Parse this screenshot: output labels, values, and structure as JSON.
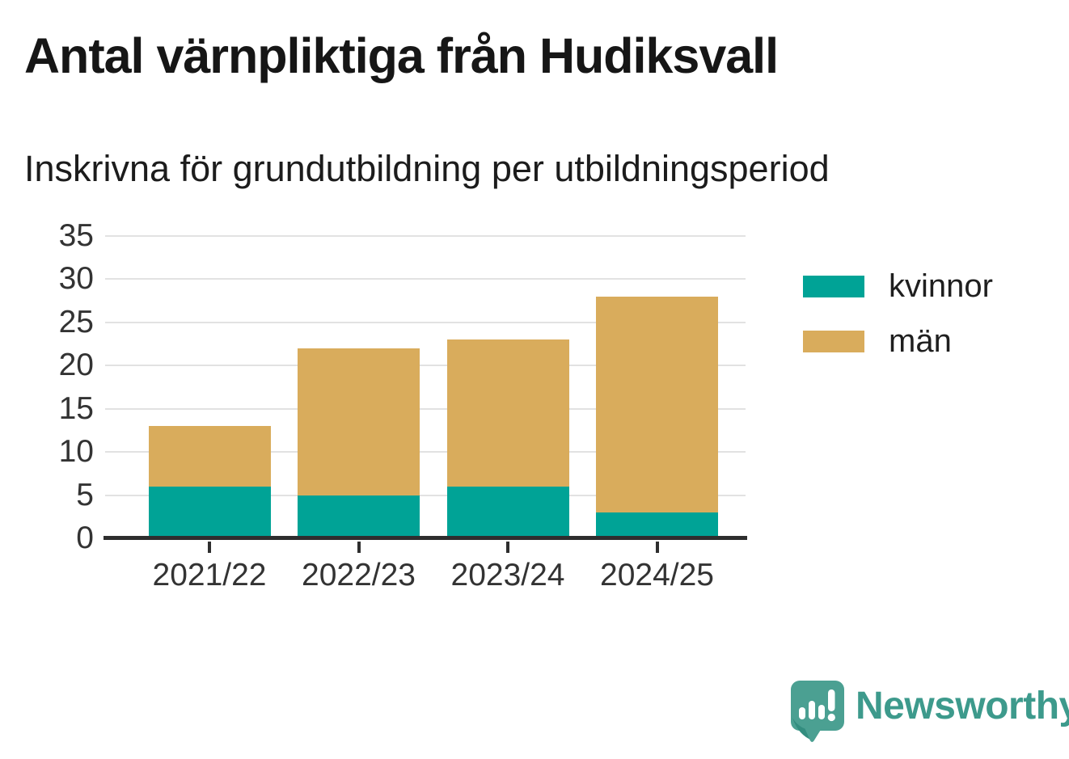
{
  "header": {
    "title": "Antal värnpliktiga från Hudiksvall",
    "subtitle": "Inskrivna för grundutbildning per utbildningsperiod"
  },
  "chart_data": {
    "type": "bar",
    "stacked": true,
    "title": "Antal värnpliktiga från Hudiksvall",
    "subtitle": "Inskrivna för grundutbildning per utbildningsperiod",
    "categories": [
      "2021/22",
      "2022/23",
      "2023/24",
      "2024/25"
    ],
    "series": [
      {
        "name": "kvinnor",
        "color": "#00A396",
        "values": [
          6,
          5,
          6,
          3
        ]
      },
      {
        "name": "män",
        "color": "#D9AC5C",
        "values": [
          7,
          17,
          17,
          25
        ]
      }
    ],
    "stack_totals": [
      13,
      22,
      23,
      28
    ],
    "xlabel": "",
    "ylabel": "",
    "ylim": [
      0,
      35
    ],
    "yticks": [
      0,
      5,
      10,
      15,
      20,
      25,
      30,
      35
    ],
    "grid": true,
    "legend_position": "right"
  },
  "branding": {
    "logo_text": "Newsworthy",
    "logo_icon": "newsworthy-speech-bubble-bar-chart-icon",
    "logo_color": "#3D9A8C"
  },
  "colors": {
    "background": "#FFFFFF",
    "axis": "#2E2E2E",
    "gridline": "#E2E2E2",
    "tick_label": "#333333",
    "title_text": "#161616",
    "icon_fill": "#4BA092",
    "icon_shadow": "#338D7F"
  }
}
